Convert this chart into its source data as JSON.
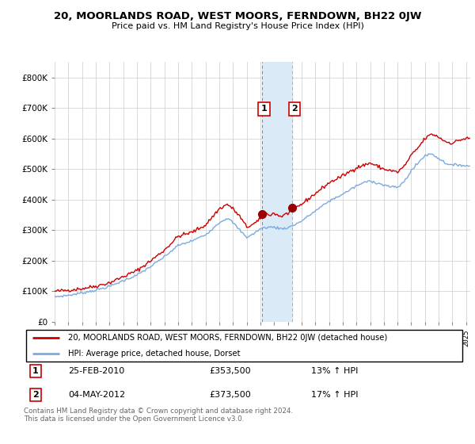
{
  "title": "20, MOORLANDS ROAD, WEST MOORS, FERNDOWN, BH22 0JW",
  "subtitle": "Price paid vs. HM Land Registry's House Price Index (HPI)",
  "legend_line1": "20, MOORLANDS ROAD, WEST MOORS, FERNDOWN, BH22 0JW (detached house)",
  "legend_line2": "HPI: Average price, detached house, Dorset",
  "red_color": "#cc0000",
  "blue_color": "#7aabe0",
  "highlight_color": "#daeaf7",
  "transaction1_date": "25-FEB-2010",
  "transaction1_price": "£353,500",
  "transaction1_hpi": "13% ↑ HPI",
  "transaction2_date": "04-MAY-2012",
  "transaction2_price": "£373,500",
  "transaction2_hpi": "17% ↑ HPI",
  "footnote": "Contains HM Land Registry data © Crown copyright and database right 2024.\nThis data is licensed under the Open Government Licence v3.0.",
  "ylim": [
    0,
    850000
  ],
  "yticks": [
    0,
    100000,
    200000,
    300000,
    400000,
    500000,
    600000,
    700000,
    800000
  ],
  "transaction1_x": 2010.12,
  "transaction1_y": 353500,
  "transaction2_x": 2012.34,
  "transaction2_y": 373500,
  "highlight_xmin": 2010.12,
  "highlight_xmax": 2012.34,
  "xmin": 1995.0,
  "xmax": 2025.3
}
